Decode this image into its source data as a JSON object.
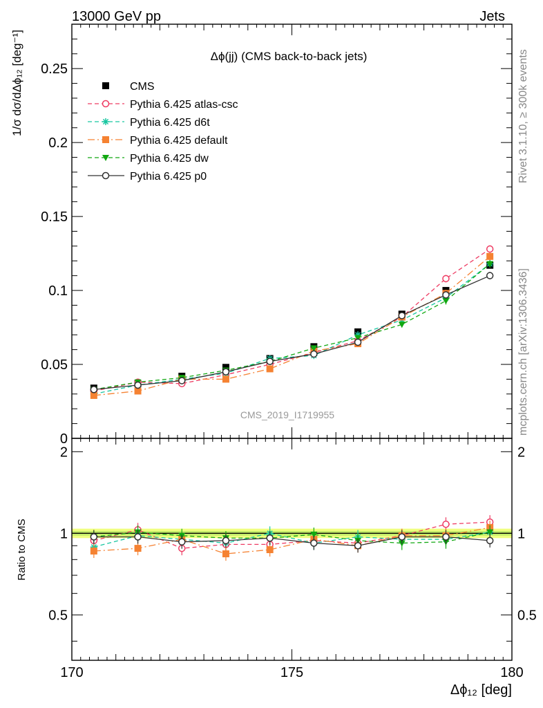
{
  "header": {
    "left": "13000 GeV pp",
    "right": "Jets"
  },
  "side": {
    "rivet": "Rivet 3.1.10, ≥ 300k events",
    "mcplots": "mcplots.cern.ch [arXiv:1306.3436]"
  },
  "watermark": "CMS_2019_I1719955",
  "chart_data": [
    {
      "type": "scatter",
      "title": "Δϕ(jj) (CMS back-to-back jets)",
      "ylabel": "1/σ dσ/dΔϕ₁₂ [deg⁻¹]",
      "xlim": [
        170,
        180
      ],
      "ylim": [
        0,
        0.28
      ],
      "xticks": [
        "170",
        "175",
        "180"
      ],
      "yticks": [
        "0",
        "0.05",
        "0.1",
        "0.15",
        "0.2",
        "0.25"
      ],
      "legend_position": "top-left",
      "series": [
        {
          "name": "CMS",
          "color": "#000000",
          "marker": "filled-square",
          "line": "none",
          "x": [
            170.5,
            171.5,
            172.5,
            173.5,
            174.5,
            175.5,
            176.5,
            177.5,
            178.5,
            179.5
          ],
          "y": [
            0.034,
            0.037,
            0.042,
            0.048,
            0.054,
            0.062,
            0.072,
            0.084,
            0.1,
            0.117
          ],
          "err": [
            0.0015,
            0.0015,
            0.0015,
            0.0015,
            0.0015,
            0.0015,
            0.0015,
            0.0015,
            0.002,
            0.002
          ]
        },
        {
          "name": "Pythia 6.425 atlas-csc",
          "color": "#ee3b62",
          "marker": "open-circle",
          "line": "dashed",
          "x": [
            170.5,
            171.5,
            172.5,
            173.5,
            174.5,
            175.5,
            176.5,
            177.5,
            178.5,
            179.5
          ],
          "y": [
            0.032,
            0.038,
            0.037,
            0.043,
            0.05,
            0.058,
            0.066,
            0.082,
            0.108,
            0.128
          ],
          "err": [
            0.001,
            0.001,
            0.001,
            0.001,
            0.0015,
            0.0015,
            0.0015,
            0.002,
            0.0025,
            0.0025
          ]
        },
        {
          "name": "Pythia 6.425 d6t",
          "color": "#17c6a0",
          "marker": "star",
          "line": "dashed",
          "x": [
            170.5,
            171.5,
            172.5,
            173.5,
            174.5,
            175.5,
            176.5,
            177.5,
            178.5,
            179.5
          ],
          "y": [
            0.03,
            0.036,
            0.04,
            0.044,
            0.054,
            0.056,
            0.07,
            0.08,
            0.095,
            0.118
          ],
          "err": [
            0.001,
            0.001,
            0.001,
            0.001,
            0.0015,
            0.0015,
            0.0015,
            0.002,
            0.0025,
            0.0025
          ]
        },
        {
          "name": "Pythia 6.425 default",
          "color": "#f58232",
          "marker": "filled-square",
          "line": "dashdot",
          "x": [
            170.5,
            171.5,
            172.5,
            173.5,
            174.5,
            175.5,
            176.5,
            177.5,
            178.5,
            179.5
          ],
          "y": [
            0.029,
            0.032,
            0.04,
            0.04,
            0.047,
            0.059,
            0.064,
            0.082,
            0.098,
            0.123
          ],
          "err": [
            0.001,
            0.001,
            0.001,
            0.0015,
            0.0015,
            0.0015,
            0.0015,
            0.002,
            0.0025,
            0.0025
          ]
        },
        {
          "name": "Pythia 6.425 dw",
          "color": "#11a811",
          "marker": "filled-triangle-down",
          "line": "dashed",
          "x": [
            170.5,
            171.5,
            172.5,
            173.5,
            174.5,
            175.5,
            176.5,
            177.5,
            178.5,
            179.5
          ],
          "y": [
            0.033,
            0.038,
            0.041,
            0.046,
            0.052,
            0.061,
            0.068,
            0.077,
            0.093,
            0.118
          ],
          "err": [
            0.001,
            0.001,
            0.001,
            0.001,
            0.0015,
            0.0015,
            0.0015,
            0.002,
            0.0025,
            0.0025
          ]
        },
        {
          "name": "Pythia 6.425 p0",
          "color": "#303030",
          "marker": "open-circle",
          "line": "solid",
          "x": [
            170.5,
            171.5,
            172.5,
            173.5,
            174.5,
            175.5,
            176.5,
            177.5,
            178.5,
            179.5
          ],
          "y": [
            0.033,
            0.036,
            0.039,
            0.045,
            0.052,
            0.057,
            0.065,
            0.083,
            0.097,
            0.11
          ],
          "err": [
            0.001,
            0.001,
            0.001,
            0.001,
            0.0015,
            0.0015,
            0.0015,
            0.002,
            0.002,
            0.0025
          ]
        }
      ]
    },
    {
      "type": "scatter",
      "ylabel": "Ratio to CMS",
      "xlabel": "Δϕ₁₂ [deg]",
      "xlim": [
        170,
        180
      ],
      "ylim": [
        0.34,
        2.24
      ],
      "yticks": [
        "0.5",
        "1",
        "2"
      ],
      "band": {
        "inner": [
          0.98,
          1.02
        ],
        "outer": [
          0.96,
          1.04
        ]
      },
      "series": [
        {
          "name": "Pythia 6.425 atlas-csc",
          "y": [
            0.94,
            1.03,
            0.88,
            0.91,
            0.91,
            0.94,
            0.92,
            0.98,
            1.08,
            1.1
          ]
        },
        {
          "name": "Pythia 6.425 d6t",
          "y": [
            0.89,
            0.98,
            0.95,
            0.92,
            1.0,
            0.92,
            0.97,
            0.95,
            0.95,
            1.01
          ]
        },
        {
          "name": "Pythia 6.425 default",
          "y": [
            0.86,
            0.88,
            0.95,
            0.84,
            0.87,
            0.95,
            0.9,
            0.98,
            0.98,
            1.05
          ]
        },
        {
          "name": "Pythia 6.425 dw",
          "y": [
            0.97,
            1.01,
            0.98,
            0.96,
            0.96,
            0.99,
            0.94,
            0.92,
            0.93,
            1.01
          ]
        },
        {
          "name": "Pythia 6.425 p0",
          "y": [
            0.97,
            0.97,
            0.93,
            0.94,
            0.96,
            0.92,
            0.9,
            0.97,
            0.97,
            0.94
          ]
        }
      ]
    }
  ]
}
